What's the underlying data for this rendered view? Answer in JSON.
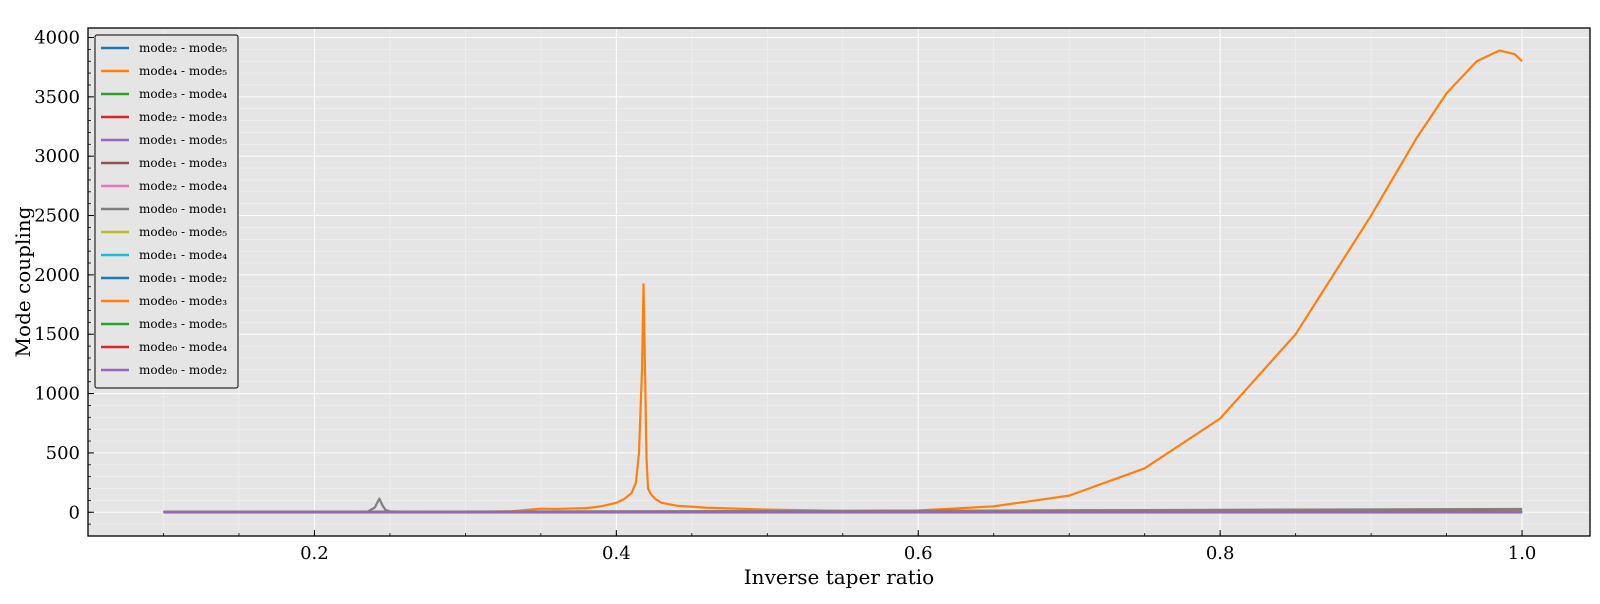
{
  "chart_data": {
    "type": "line",
    "xlabel": "Inverse taper ratio",
    "ylabel": "Mode coupling",
    "xlim": [
      0.05,
      1.045
    ],
    "ylim": [
      -200,
      4080
    ],
    "x_ticks": [
      0.2,
      0.4,
      0.6,
      0.8,
      1.0
    ],
    "x_tick_labels": [
      "0.2",
      "0.4",
      "0.6",
      "0.8",
      "1.0"
    ],
    "y_ticks": [
      0,
      500,
      1000,
      1500,
      2000,
      2500,
      3000,
      3500,
      4000
    ],
    "y_tick_labels": [
      "0",
      "500",
      "1000",
      "1500",
      "2000",
      "2500",
      "3000",
      "3500",
      "4000"
    ],
    "grid": true,
    "legend_position": "top-left",
    "series": [
      {
        "name": "mode₂ - mode₅",
        "color": "#1f77b4",
        "x": [
          0.1,
          1.0
        ],
        "y": [
          2,
          2
        ]
      },
      {
        "name": "mode₄ - mode₅",
        "color": "#ff7f0e",
        "x": [
          0.1,
          0.2,
          0.3,
          0.33,
          0.35,
          0.36,
          0.38,
          0.39,
          0.4,
          0.405,
          0.41,
          0.413,
          0.415,
          0.417,
          0.418,
          0.419,
          0.42,
          0.421,
          0.423,
          0.426,
          0.43,
          0.44,
          0.46,
          0.5,
          0.55,
          0.6,
          0.65,
          0.7,
          0.75,
          0.8,
          0.85,
          0.9,
          0.93,
          0.95,
          0.97,
          0.985,
          0.995,
          1.0
        ],
        "y": [
          1,
          2,
          3,
          8,
          30,
          28,
          35,
          50,
          80,
          110,
          160,
          250,
          500,
          1200,
          1920,
          1200,
          450,
          200,
          150,
          110,
          80,
          55,
          38,
          22,
          12,
          15,
          50,
          140,
          370,
          790,
          1500,
          2500,
          3150,
          3530,
          3800,
          3890,
          3860,
          3800
        ]
      },
      {
        "name": "mode₃ - mode₄",
        "color": "#2ca02c",
        "x": [
          0.1,
          1.0
        ],
        "y": [
          1,
          1
        ]
      },
      {
        "name": "mode₂ - mode₃",
        "color": "#d62728",
        "x": [
          0.1,
          1.0
        ],
        "y": [
          1,
          3
        ]
      },
      {
        "name": "mode₁ - mode₅",
        "color": "#9467bd",
        "x": [
          0.1,
          1.0
        ],
        "y": [
          2,
          2
        ]
      },
      {
        "name": "mode₁ - mode₃",
        "color": "#8c564b",
        "x": [
          0.1,
          0.5,
          1.0
        ],
        "y": [
          3,
          8,
          25
        ]
      },
      {
        "name": "mode₂ - mode₄",
        "color": "#e377c2",
        "x": [
          0.1,
          1.0
        ],
        "y": [
          1,
          2
        ]
      },
      {
        "name": "mode₀ - mode₁",
        "color": "#7f7f7f",
        "x": [
          0.1,
          0.235,
          0.24,
          0.243,
          0.245,
          0.247,
          0.25,
          0.26,
          0.6,
          1.0
        ],
        "y": [
          2,
          4,
          40,
          115,
          60,
          20,
          8,
          5,
          12,
          28
        ]
      },
      {
        "name": "mode₀ - mode₅",
        "color": "#bcbd22",
        "x": [
          0.1,
          1.0
        ],
        "y": [
          1,
          1
        ]
      },
      {
        "name": "mode₁ - mode₄",
        "color": "#17becf",
        "x": [
          0.1,
          1.0
        ],
        "y": [
          1,
          1
        ]
      },
      {
        "name": "mode₁ - mode₂",
        "color": "#1f77b4",
        "x": [
          0.1,
          1.0
        ],
        "y": [
          2,
          3
        ]
      },
      {
        "name": "mode₀ - mode₃",
        "color": "#ff7f0e",
        "x": [
          0.1,
          1.0
        ],
        "y": [
          2,
          4
        ]
      },
      {
        "name": "mode₃ - mode₅",
        "color": "#2ca02c",
        "x": [
          0.1,
          1.0
        ],
        "y": [
          1,
          2
        ]
      },
      {
        "name": "mode₀ - mode₄",
        "color": "#d62728",
        "x": [
          0.1,
          1.0
        ],
        "y": [
          1,
          1
        ]
      },
      {
        "name": "mode₀ - mode₂",
        "color": "#9467bd",
        "x": [
          0.1,
          1.0
        ],
        "y": [
          2,
          2
        ]
      }
    ]
  }
}
